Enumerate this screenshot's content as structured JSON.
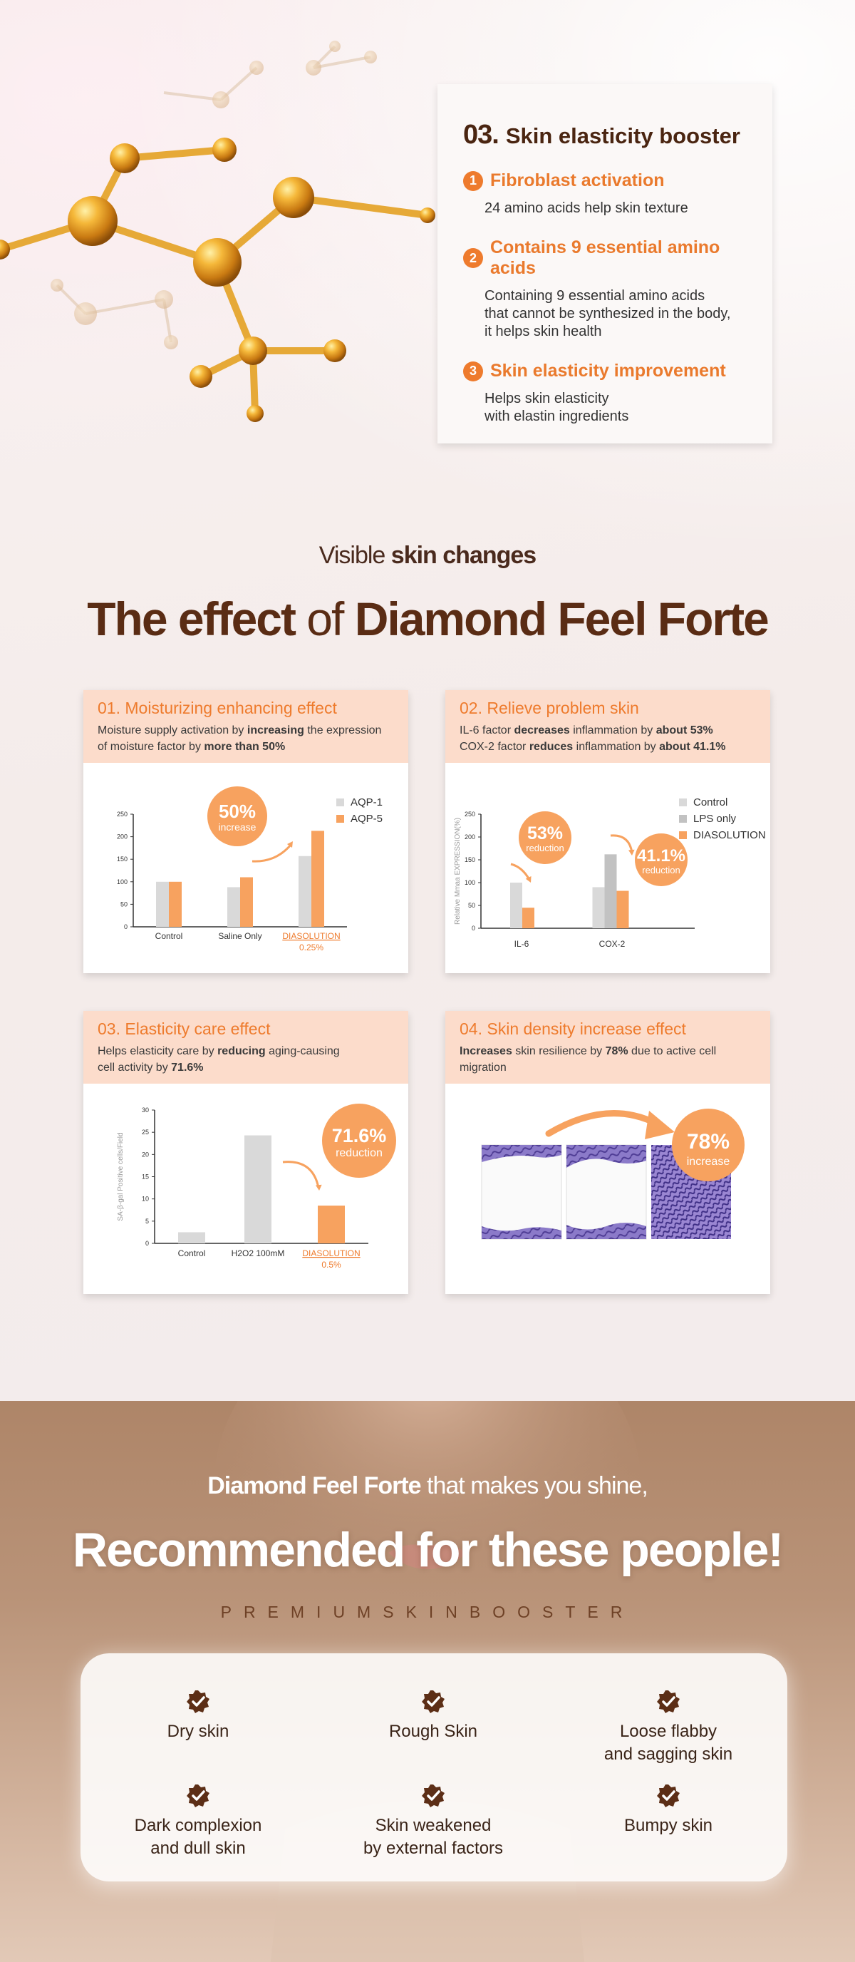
{
  "booster": {
    "number": "03.",
    "title": "Skin elasticity booster",
    "features": [
      {
        "badge": "1",
        "title": "Fibroblast activation",
        "desc": "24 amino acids help skin texture"
      },
      {
        "badge": "2",
        "title": "Contains 9 essential amino acids",
        "desc": "Containing 9 essential amino acids\nthat cannot be synthesized in the body,\nit helps skin health"
      },
      {
        "badge": "3",
        "title": "Skin elasticity improvement",
        "desc": "Helps skin elasticity\nwith elastin ingredients"
      }
    ]
  },
  "section": {
    "sub_plain": "Visible ",
    "sub_bold": "skin changes",
    "title_bold1": "The effect",
    "title_plain": " of ",
    "title_bold2": "Diamond Feel Forte"
  },
  "effects": [
    {
      "title": "01. Moisturizing enhancing effect",
      "desc_parts": [
        "Moisture supply activation by ",
        "increasing",
        " the expression\nof moisture factor by ",
        "more than 50%",
        ""
      ],
      "badge_value": "50%",
      "badge_label": "increase"
    },
    {
      "title": "02. Relieve problem skin",
      "desc_parts": [
        "IL-6 factor ",
        "decreases",
        " inflammation by ",
        "about 53%",
        "\nCOX-2 factor ",
        "reduces",
        " inflammation by ",
        "about 41.1%",
        ""
      ],
      "badge1_value": "53%",
      "badge1_label": "reduction",
      "badge2_value": "41.1%",
      "badge2_label": "reduction"
    },
    {
      "title": "03. Elasticity care effect",
      "desc_parts": [
        "Helps elasticity care by ",
        "reducing",
        " aging-causing\ncell activity by ",
        "71.6%",
        ""
      ],
      "badge_value": "71.6%",
      "badge_label": "reduction"
    },
    {
      "title": "04. Skin density increase effect",
      "desc_parts": [
        "",
        "Increases",
        " skin resilience by ",
        "78%",
        " due to active cell migration"
      ],
      "badge_value": "78%",
      "badge_label": "increase"
    }
  ],
  "chart_data": [
    {
      "type": "bar",
      "categories": [
        "Control",
        "Saline Only",
        "DIASOLUTION\n0.25%"
      ],
      "series": [
        {
          "name": "AQP-1",
          "values": [
            100,
            88,
            157
          ]
        },
        {
          "name": "AQP-5",
          "values": [
            100,
            110,
            213
          ]
        }
      ],
      "yticks": [
        "0",
        "50",
        "100",
        "150",
        "200",
        "250"
      ],
      "ylim": [
        0,
        250
      ],
      "colors": [
        "#d9d9d9",
        "#f7a25f"
      ],
      "legend": "top-right"
    },
    {
      "type": "bar",
      "ylabel": "Relative Mmaa EXPRESSION(%)",
      "categories": [
        "IL-6",
        "COX-2"
      ],
      "series": [
        {
          "name": "Control",
          "values": [
            100,
            90
          ]
        },
        {
          "name": "LPS only",
          "values": [
            null,
            162
          ]
        },
        {
          "name": "DIASOLUTION",
          "values": [
            45,
            82
          ]
        }
      ],
      "yticks": [
        "0",
        "50",
        "100",
        "150",
        "200",
        "250"
      ],
      "ylim": [
        0,
        250
      ],
      "colors": [
        "#d9d9d9",
        "#c2c2c2",
        "#f7a25f"
      ],
      "legend": "top-right"
    },
    {
      "type": "bar",
      "ylabel": "SA-β-gal Positive cells/Field",
      "categories": [
        "Control",
        "H2O2 100mM",
        "DIASOLUTION\n0.5%"
      ],
      "values": [
        2.5,
        24.3,
        8.5
      ],
      "yticks": [
        "0",
        "5",
        "10",
        "15",
        "20",
        "25",
        "30"
      ],
      "ylim": [
        0,
        30
      ],
      "colors": [
        "#d9d9d9",
        "#d9d9d9",
        "#f7a25f"
      ]
    }
  ],
  "recommend": {
    "sub_bold": "Diamond Feel Forte",
    "sub_plain": " that makes you shine,",
    "title": "Recommended for these people!",
    "tag": "PREMIUMSKINBOOSTER",
    "items": [
      "Dry skin",
      "Rough Skin",
      "Loose flabby\nand sagging skin",
      "Dark complexion\nand dull skin",
      "Skin weakened\nby external factors",
      "Bumpy skin"
    ]
  }
}
